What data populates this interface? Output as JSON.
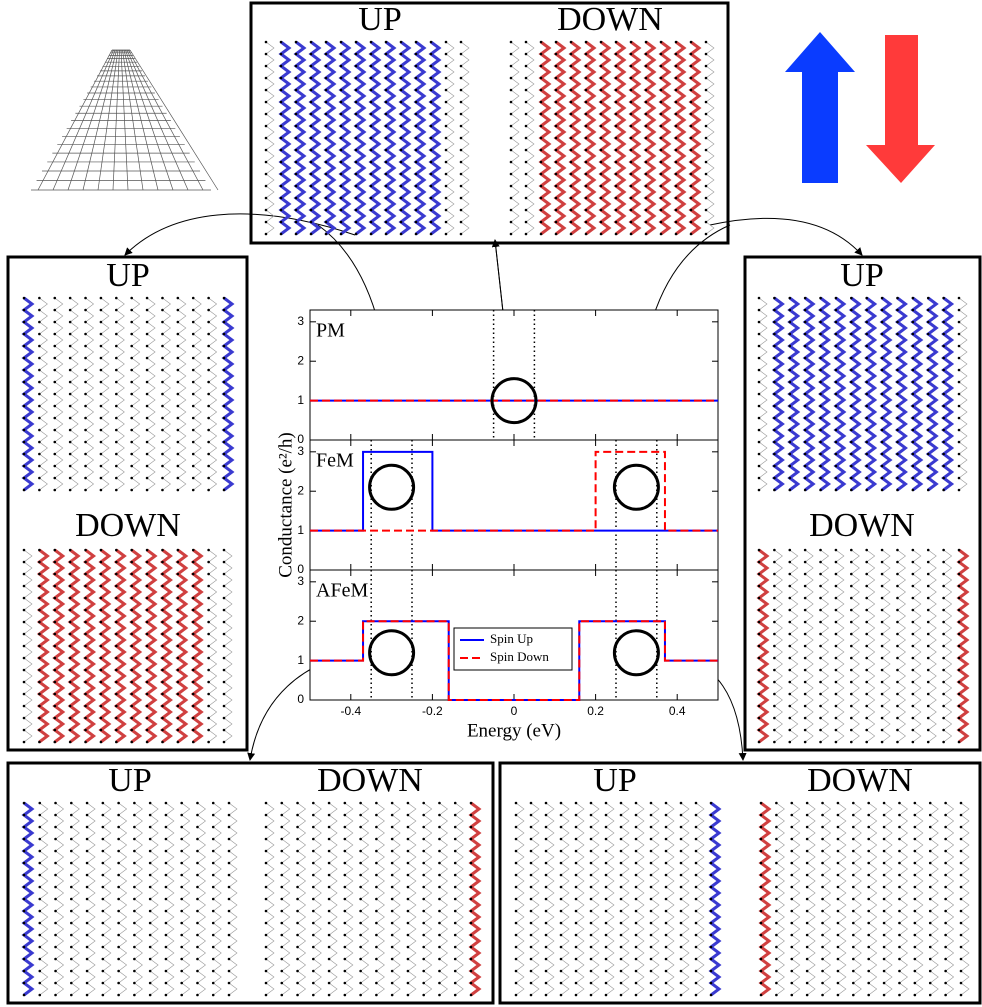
{
  "chart_data": [
    {
      "type": "line",
      "title": "PM",
      "xlim": [
        -0.5,
        0.5
      ],
      "xticks": [
        -0.4,
        -0.2,
        0,
        0.2,
        0.4
      ],
      "ylim": [
        0,
        3.3
      ],
      "yticks": [
        0,
        1,
        2,
        3
      ],
      "series": [
        {
          "name": "Spin Up",
          "color": "#0000ff",
          "style": "solid",
          "x": [
            -0.5,
            0.5
          ],
          "values": [
            1,
            1
          ]
        },
        {
          "name": "Spin Down",
          "color": "#ff0000",
          "style": "dashed",
          "x": [
            -0.5,
            0.5
          ],
          "values": [
            1,
            1
          ]
        }
      ],
      "vlines": [
        -0.05,
        0.05
      ]
    },
    {
      "type": "line",
      "title": "FeM",
      "ylabel": "Conductance (e²/h)",
      "xlim": [
        -0.5,
        0.5
      ],
      "xticks": [
        -0.4,
        -0.2,
        0,
        0.2,
        0.4
      ],
      "ylim": [
        0,
        3.3
      ],
      "yticks": [
        0,
        1,
        2,
        3
      ],
      "series": [
        {
          "name": "Spin Up",
          "color": "#0000ff",
          "style": "solid",
          "x": [
            -0.5,
            -0.37,
            -0.37,
            -0.2,
            -0.2,
            0.5
          ],
          "values": [
            1,
            1,
            3,
            3,
            1,
            1
          ]
        },
        {
          "name": "Spin Down",
          "color": "#ff0000",
          "style": "dashed",
          "x": [
            -0.5,
            0.2,
            0.2,
            0.37,
            0.37,
            0.5
          ],
          "values": [
            1,
            1,
            3,
            3,
            1,
            1
          ]
        }
      ],
      "vlines": [
        -0.35,
        -0.25,
        0.25,
        0.35
      ]
    },
    {
      "type": "line",
      "title": "AFeM",
      "xlabel": "Energy (eV)",
      "xlim": [
        -0.5,
        0.5
      ],
      "xticks": [
        -0.4,
        -0.2,
        0,
        0.2,
        0.4
      ],
      "ylim": [
        0,
        3.3
      ],
      "yticks": [
        0,
        1,
        2,
        3
      ],
      "series": [
        {
          "name": "Spin Up",
          "color": "#0000ff",
          "style": "solid",
          "x": [
            -0.5,
            -0.37,
            -0.37,
            -0.16,
            -0.16,
            0.16,
            0.16,
            0.37,
            0.37,
            0.5
          ],
          "values": [
            1,
            1,
            2,
            2,
            0,
            0,
            2,
            2,
            1,
            1
          ]
        },
        {
          "name": "Spin Down",
          "color": "#ff0000",
          "style": "dashed",
          "x": [
            -0.5,
            -0.37,
            -0.37,
            -0.16,
            -0.16,
            0.16,
            0.16,
            0.37,
            0.37,
            0.5
          ],
          "values": [
            1,
            1,
            2,
            2,
            0,
            0,
            2,
            2,
            1,
            1
          ]
        }
      ],
      "vlines": [
        -0.35,
        -0.25,
        0.25,
        0.35
      ],
      "legend": "center"
    }
  ],
  "boxes": [
    {
      "labels": [
        "UP",
        "DOWN"
      ]
    },
    {
      "labels": [
        "UP",
        "DOWN"
      ]
    },
    {
      "labels": [
        "UP",
        "DOWN"
      ]
    },
    {
      "labels": [
        "UP",
        "DOWN"
      ]
    },
    {
      "labels": [
        "UP",
        "DOWN"
      ]
    }
  ]
}
